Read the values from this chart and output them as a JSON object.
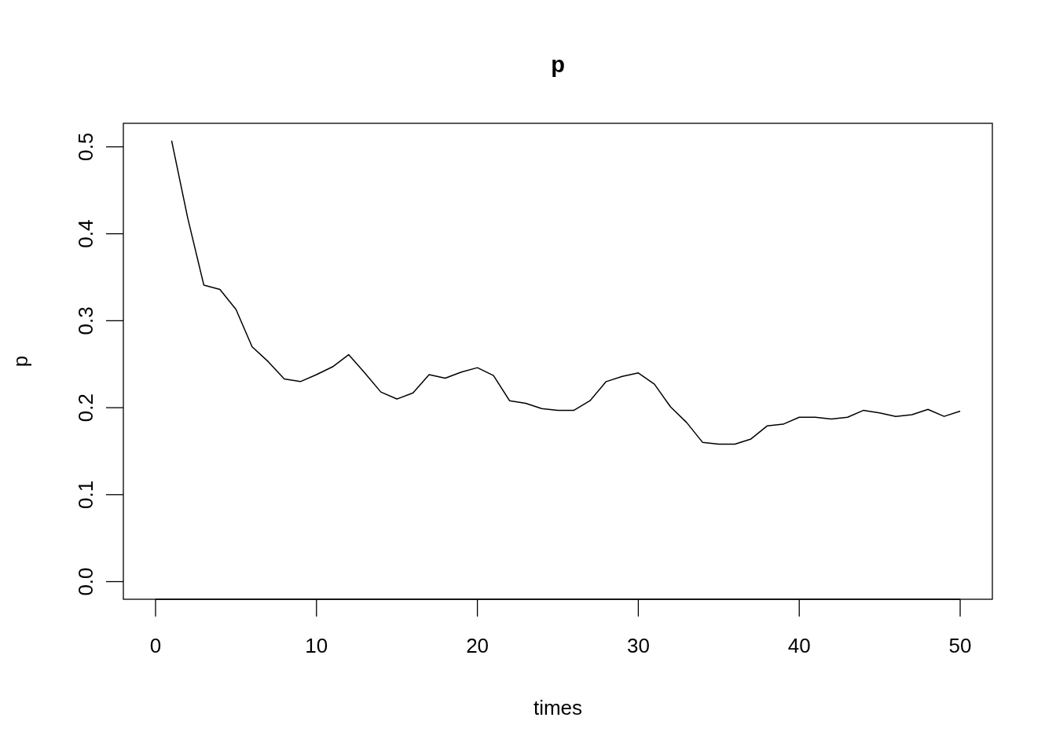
{
  "chart_data": {
    "type": "line",
    "title": "p",
    "xlabel": "times",
    "ylabel": "p",
    "x": [
      1,
      2,
      3,
      4,
      5,
      6,
      7,
      8,
      9,
      10,
      11,
      12,
      13,
      14,
      15,
      16,
      17,
      18,
      19,
      20,
      21,
      22,
      23,
      24,
      25,
      26,
      27,
      28,
      29,
      30,
      31,
      32,
      33,
      34,
      35,
      36,
      37,
      38,
      39,
      40,
      41,
      42,
      43,
      44,
      45,
      46,
      47,
      48,
      49,
      50
    ],
    "series": [
      {
        "color": "#000000",
        "values": [
          0.507,
          0.418,
          0.341,
          0.336,
          0.313,
          0.27,
          0.253,
          0.233,
          0.23,
          0.238,
          0.247,
          0.261,
          0.24,
          0.218,
          0.21,
          0.217,
          0.238,
          0.234,
          0.241,
          0.246,
          0.237,
          0.208,
          0.205,
          0.199,
          0.197,
          0.197,
          0.208,
          0.23,
          0.236,
          0.24,
          0.227,
          0.201,
          0.183,
          0.16,
          0.158,
          0.158,
          0.164,
          0.179,
          0.181,
          0.189,
          0.189,
          0.187,
          0.189,
          0.197,
          0.194,
          0.19,
          0.192,
          0.198,
          0.19,
          0.196
        ]
      }
    ],
    "xlim": [
      -2,
      52
    ],
    "xticks": [
      0,
      10,
      20,
      30,
      40,
      50
    ],
    "ylim": [
      -0.0203,
      0.527
    ],
    "yticks": [
      {
        "value": 0,
        "label": "0.0"
      },
      {
        "value": 0.1,
        "label": "0.1"
      },
      {
        "value": 0.2,
        "label": "0.2"
      },
      {
        "value": 0.3,
        "label": "0.3"
      },
      {
        "value": 0.4,
        "label": "0.4"
      },
      {
        "value": 0.5,
        "label": "0.5"
      }
    ],
    "line_style": "solid"
  }
}
